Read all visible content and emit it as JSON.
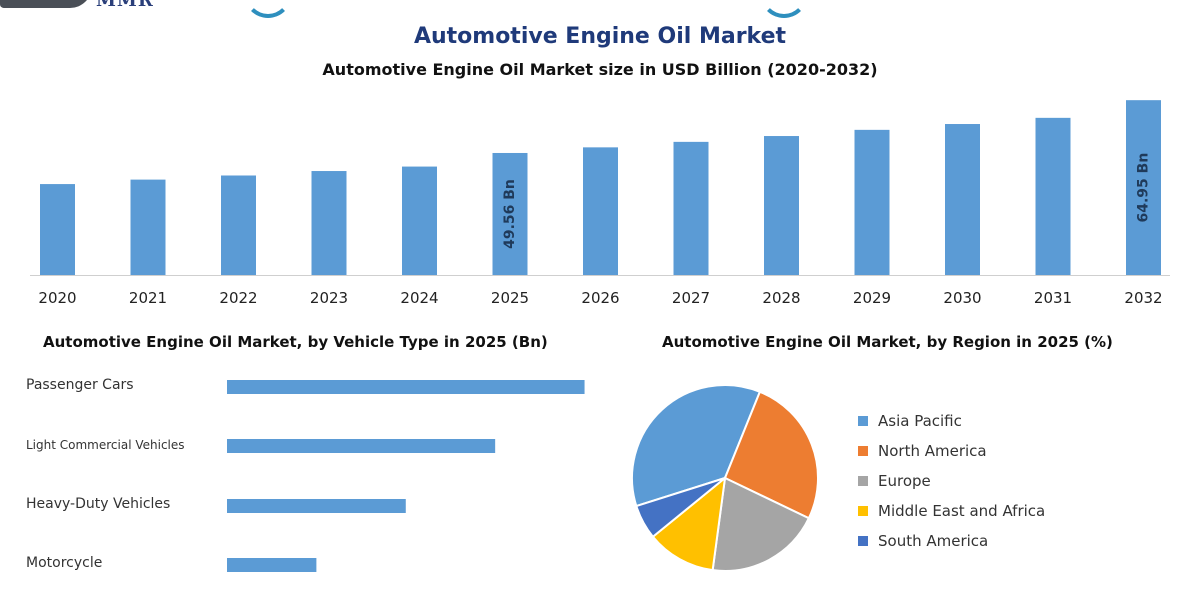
{
  "header": {
    "brand": "MMR",
    "title": "Automotive Engine Oil Market"
  },
  "chart_data": [
    {
      "type": "bar",
      "title": "Automotive Engine Oil Market size in USD Billion (2020-2032)",
      "categories": [
        "2020",
        "2021",
        "2022",
        "2023",
        "2024",
        "2025",
        "2026",
        "2027",
        "2028",
        "2029",
        "2030",
        "2031",
        "2032"
      ],
      "values": [
        40.5,
        41.8,
        43.0,
        44.3,
        45.6,
        49.56,
        51.2,
        52.8,
        54.5,
        56.3,
        58.0,
        59.8,
        64.95
      ],
      "data_labels": {
        "2025": "49.56 Bn",
        "2032": "64.95 Bn"
      },
      "ylim": [
        14,
        65
      ],
      "color": "#5b9bd5",
      "grid": false
    },
    {
      "type": "bar",
      "orientation": "horizontal",
      "title": "Automotive Engine Oil Market, by Vehicle Type in 2025 (Bn)",
      "categories": [
        "Passenger Cars",
        "Light Commercial Vehicles",
        "Heavy-Duty Vehicles",
        "Motorcycle"
      ],
      "values": [
        24.0,
        18.0,
        12.0,
        6.0
      ],
      "xlim": [
        0,
        24.5
      ],
      "color": "#5b9bd5"
    },
    {
      "type": "pie",
      "title": "Automotive Engine Oil Market, by Region in 2025 (%)",
      "labels": [
        "Asia Pacific",
        "North America",
        "Europe",
        "Middle East and Africa",
        "South America"
      ],
      "values": [
        36,
        26,
        20,
        12,
        6
      ],
      "colors": [
        "#5b9bd5",
        "#ed7d31",
        "#a5a5a5",
        "#ffc000",
        "#4472c4"
      ],
      "legend_position": "right"
    }
  ]
}
